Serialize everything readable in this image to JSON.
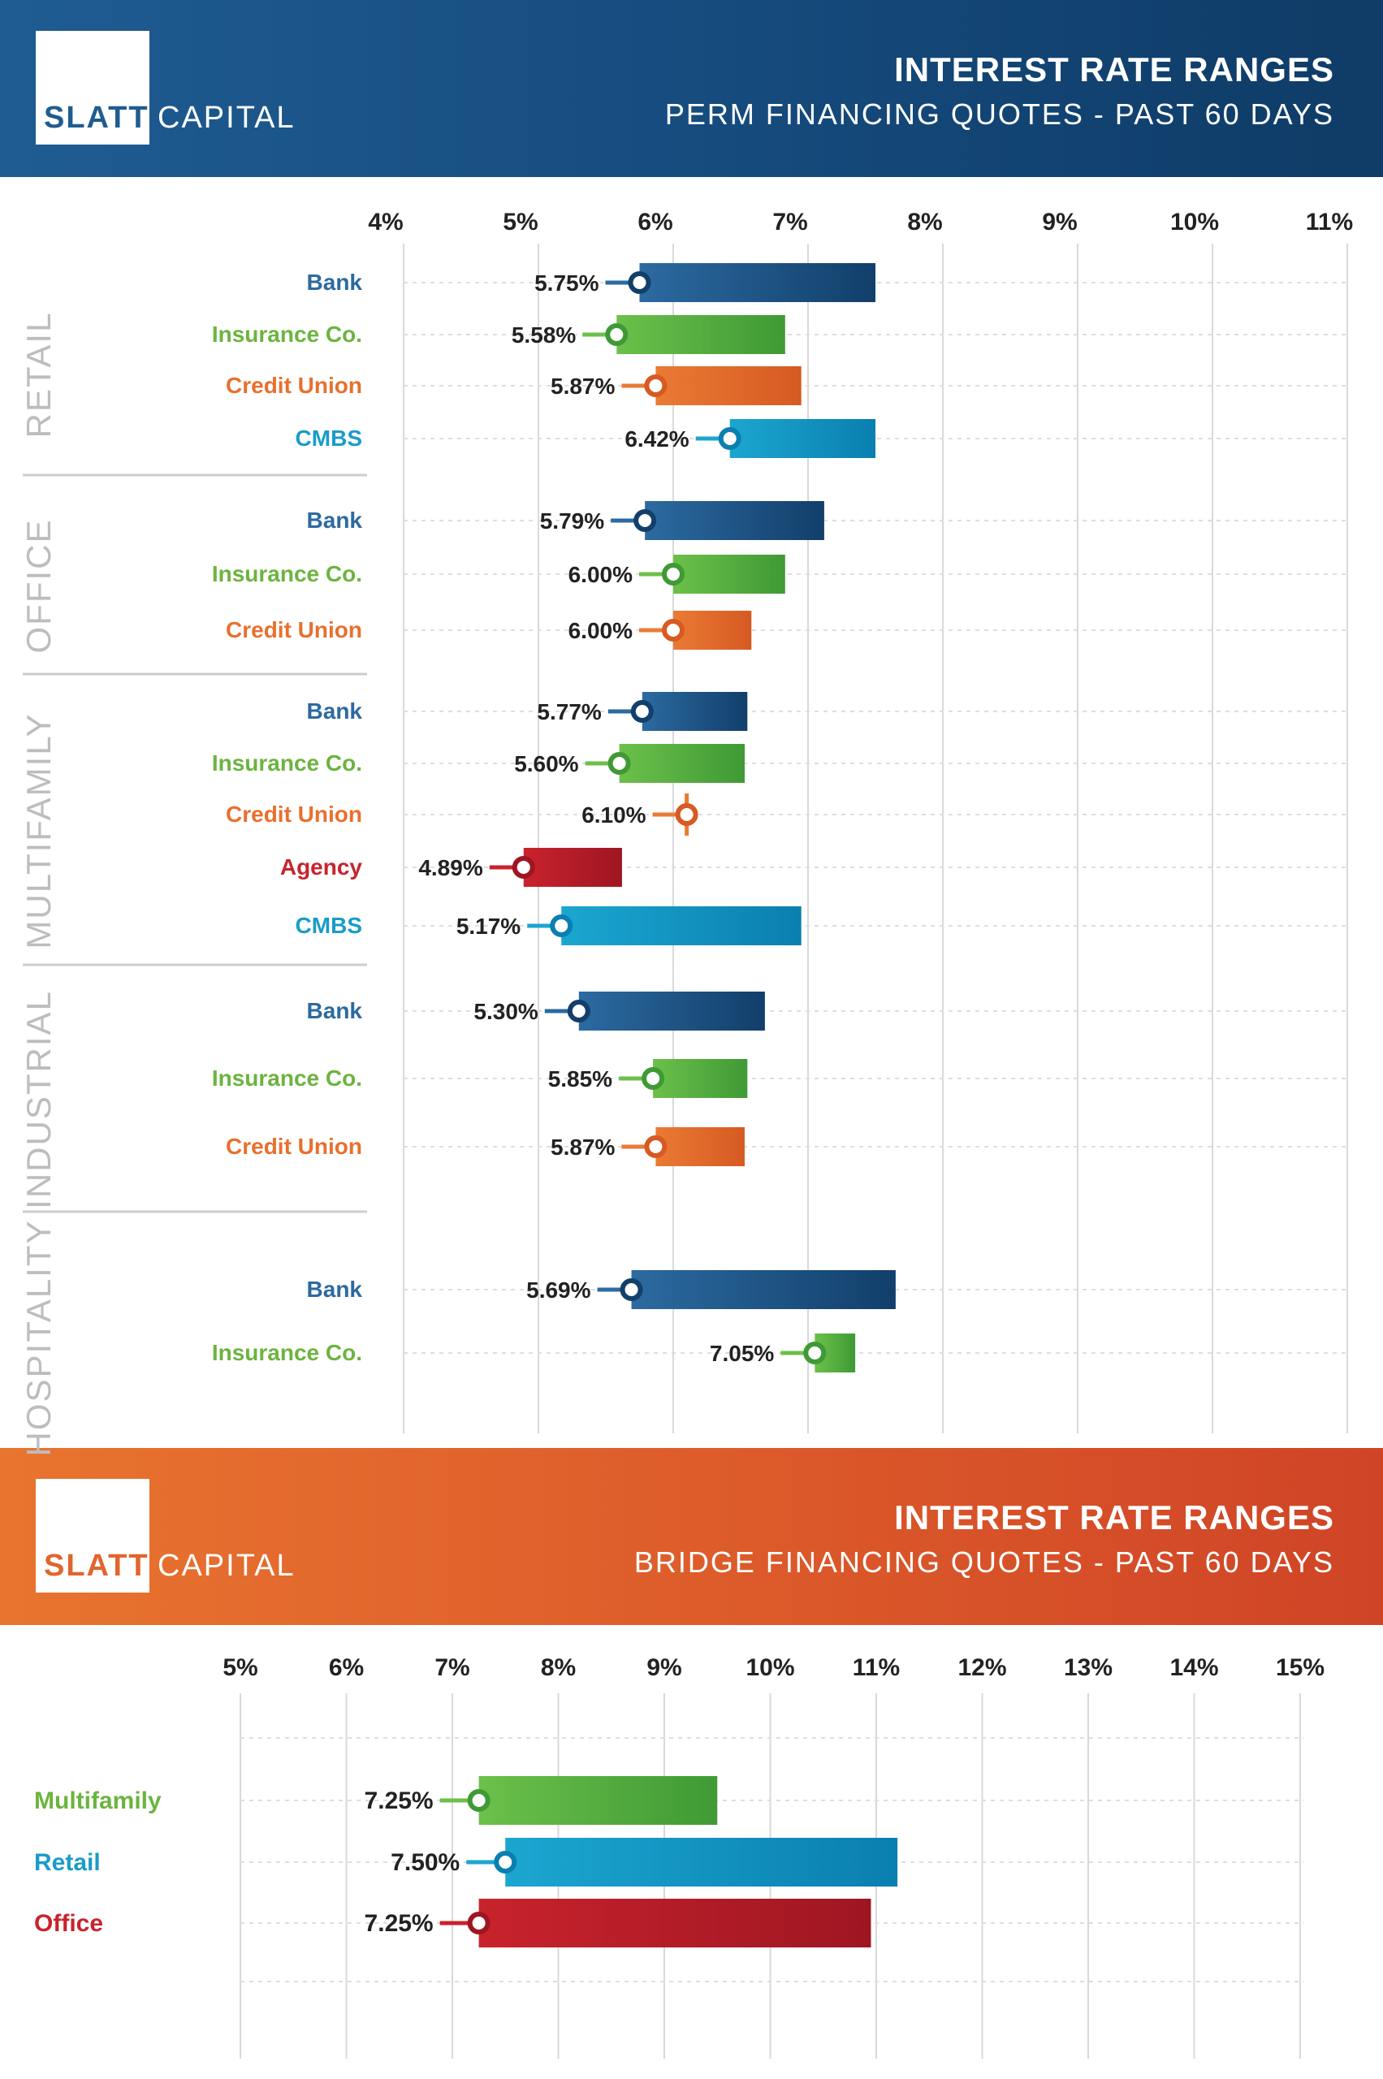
{
  "perm_banner": {
    "logo_slatt": "SLATT",
    "logo_capital": "CAPITAL",
    "title": "INTEREST RATE RANGES",
    "subtitle": "PERM FINANCING QUOTES - PAST 60 DAYS"
  },
  "bridge_banner": {
    "logo_slatt": "SLATT",
    "logo_capital": "CAPITAL",
    "title": "INTEREST RATE RANGES",
    "subtitle": "BRIDGE FINANCING QUOTES - PAST 60 DAYS"
  },
  "colors": {
    "Bank": [
      "#2c6aa0",
      "#123f6b"
    ],
    "Insurance Co.": [
      "#6cc04a",
      "#3f9a35"
    ],
    "Credit Union": [
      "#ea7a34",
      "#d65a22"
    ],
    "CMBS": [
      "#1ba6d0",
      "#0a7fb0"
    ],
    "Agency": [
      "#c8232c",
      "#9e1622"
    ],
    "Multifamily": [
      "#6cc04a",
      "#3f9a35"
    ],
    "Retail": [
      "#1ba6d0",
      "#0a7fb0"
    ],
    "Office": [
      "#c8232c",
      "#9e1622"
    ]
  },
  "label_colors": {
    "Bank": "#2c6aa0",
    "Insurance Co.": "#6cb43f",
    "Credit Union": "#e8702e",
    "CMBS": "#1a9cc8",
    "Agency": "#c8232c",
    "Multifamily": "#6cb43f",
    "Retail": "#1a9cc8",
    "Office": "#c8232c"
  },
  "chart_data": [
    {
      "type": "bar",
      "subtype": "floating-range",
      "title": "INTEREST RATE RANGES",
      "subtitle": "PERM FINANCING QUOTES - PAST 60 DAYS",
      "xlim": [
        4,
        11
      ],
      "x_ticks": [
        "4%",
        "5%",
        "6%",
        "7%",
        "8%",
        "9%",
        "10%",
        "11%"
      ],
      "grid": true,
      "groups": [
        {
          "name": "RETAIL",
          "rows": [
            {
              "lender": "Bank",
              "low": 5.75,
              "high": 7.5,
              "label": "5.75%"
            },
            {
              "lender": "Insurance Co.",
              "low": 5.58,
              "high": 6.83,
              "label": "5.58%"
            },
            {
              "lender": "Credit Union",
              "low": 5.87,
              "high": 6.95,
              "label": "5.87%"
            },
            {
              "lender": "CMBS",
              "low": 6.42,
              "high": 7.5,
              "label": "6.42%"
            }
          ]
        },
        {
          "name": "OFFICE",
          "rows": [
            {
              "lender": "Bank",
              "low": 5.79,
              "high": 7.12,
              "label": "5.79%"
            },
            {
              "lender": "Insurance Co.",
              "low": 6.0,
              "high": 6.83,
              "label": "6.00%"
            },
            {
              "lender": "Credit Union",
              "low": 6.0,
              "high": 6.58,
              "label": "6.00%"
            }
          ]
        },
        {
          "name": "MULTIFAMILY",
          "rows": [
            {
              "lender": "Bank",
              "low": 5.77,
              "high": 6.55,
              "label": "5.77%"
            },
            {
              "lender": "Insurance Co.",
              "low": 5.6,
              "high": 6.53,
              "label": "5.60%"
            },
            {
              "lender": "Credit Union",
              "low": 6.1,
              "high": 6.1,
              "label": "6.10%"
            },
            {
              "lender": "Agency",
              "low": 4.89,
              "high": 5.62,
              "label": "4.89%"
            },
            {
              "lender": "CMBS",
              "low": 5.17,
              "high": 6.95,
              "label": "5.17%"
            }
          ]
        },
        {
          "name": "INDUSTRIAL",
          "rows": [
            {
              "lender": "Bank",
              "low": 5.3,
              "high": 6.68,
              "label": "5.30%"
            },
            {
              "lender": "Insurance Co.",
              "low": 5.85,
              "high": 6.55,
              "label": "5.85%"
            },
            {
              "lender": "Credit Union",
              "low": 5.87,
              "high": 6.53,
              "label": "5.87%"
            }
          ]
        },
        {
          "name": "HOSPITALITY",
          "rows": [
            {
              "lender": "Bank",
              "low": 5.69,
              "high": 7.65,
              "label": "5.69%"
            },
            {
              "lender": "Insurance Co.",
              "low": 7.05,
              "high": 7.35,
              "label": "7.05%"
            }
          ]
        }
      ]
    },
    {
      "type": "bar",
      "subtype": "floating-range",
      "title": "INTEREST RATE RANGES",
      "subtitle": "BRIDGE FINANCING QUOTES - PAST 60 DAYS",
      "xlim": [
        5,
        15
      ],
      "x_ticks": [
        "5%",
        "6%",
        "7%",
        "8%",
        "9%",
        "10%",
        "11%",
        "12%",
        "13%",
        "14%",
        "15%"
      ],
      "grid": true,
      "rows": [
        {
          "lender": "Multifamily",
          "low": 7.25,
          "high": 9.5,
          "label": "7.25%"
        },
        {
          "lender": "Retail",
          "low": 7.5,
          "high": 11.2,
          "label": "7.50%"
        },
        {
          "lender": "Office",
          "low": 7.25,
          "high": 10.95,
          "label": "7.25%"
        }
      ]
    }
  ]
}
